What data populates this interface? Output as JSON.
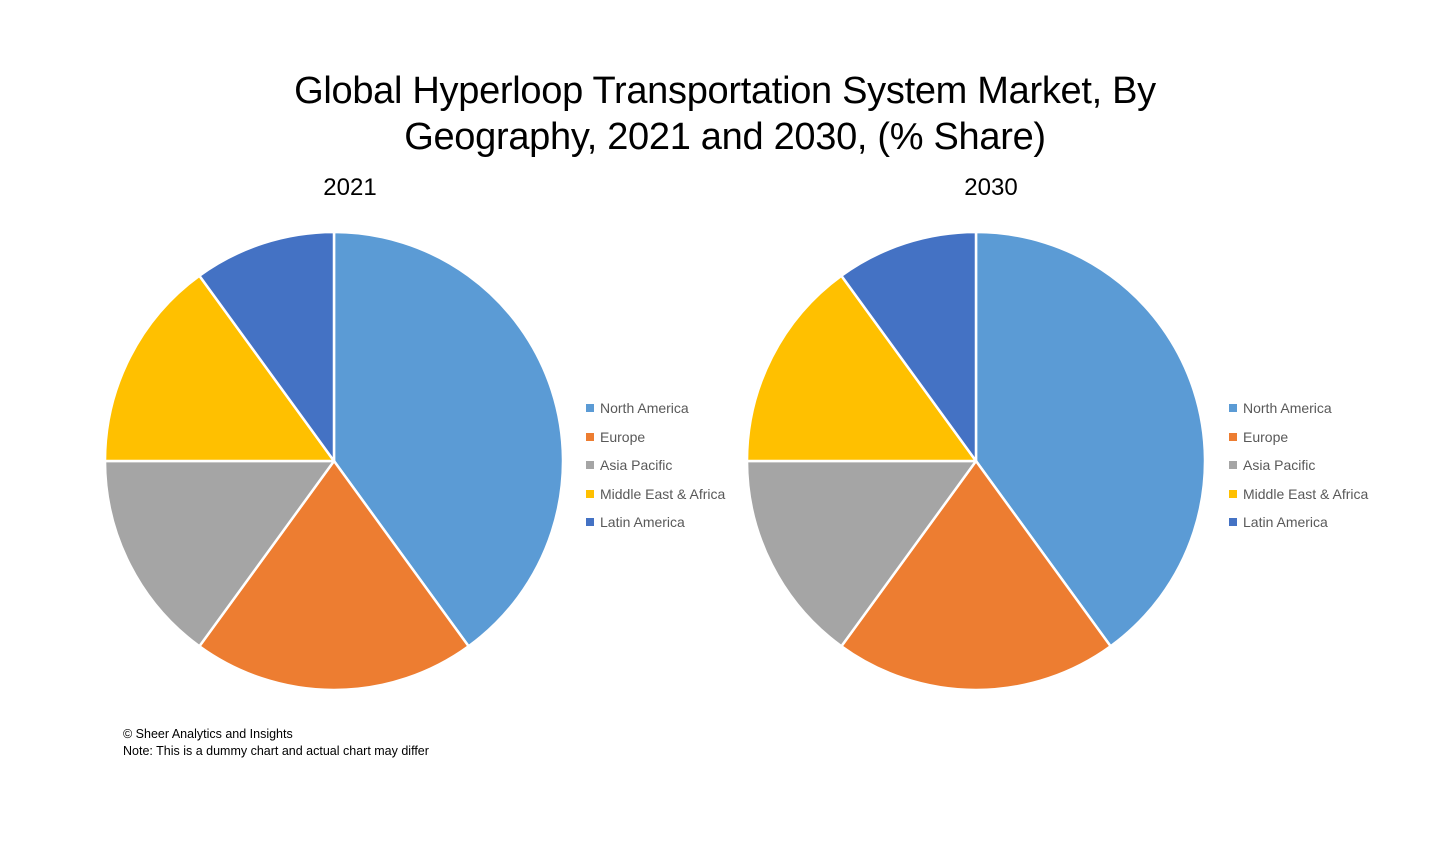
{
  "title_line1": "Global Hyperloop Transportation System Market, By",
  "title_line2": "Geography, 2021 and 2030, (% Share)",
  "footer": {
    "copyright": "© Sheer Analytics and Insights",
    "note": "Note: This is a dummy chart and actual chart may differ"
  },
  "chart_data": [
    {
      "type": "pie",
      "title": "2021",
      "categories": [
        "North America",
        "Europe",
        "Asia Pacific",
        "Middle East & Africa",
        "Latin America"
      ],
      "values": [
        40,
        20,
        15,
        15,
        10
      ],
      "colors": [
        "#5B9BD5",
        "#ED7D31",
        "#A5A5A5",
        "#FFC000",
        "#4472C4"
      ],
      "legend_position": "right"
    },
    {
      "type": "pie",
      "title": "2030",
      "categories": [
        "North America",
        "Europe",
        "Asia Pacific",
        "Middle East & Africa",
        "Latin America"
      ],
      "values": [
        40,
        20,
        15,
        15,
        10
      ],
      "colors": [
        "#5B9BD5",
        "#ED7D31",
        "#A5A5A5",
        "#FFC000",
        "#4472C4"
      ],
      "legend_position": "right"
    }
  ]
}
